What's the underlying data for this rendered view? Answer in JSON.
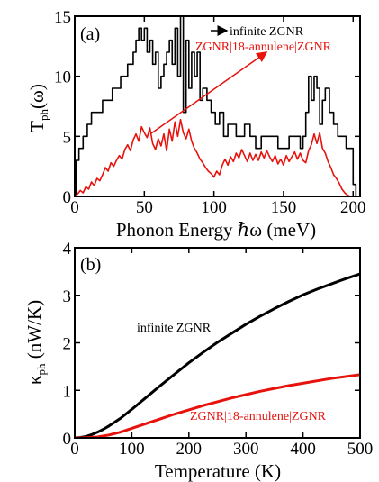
{
  "chart_data": [
    {
      "type": "line",
      "panel_label": "(a)",
      "xlabel": "Phonon Energy ℏω (meV)",
      "ylabel_main": "T",
      "ylabel_sub": "ph",
      "ylabel_tail": "(ω)",
      "xlim": [
        0,
        205
      ],
      "ylim": [
        0,
        15
      ],
      "xticks": [
        0,
        50,
        100,
        150,
        200
      ],
      "yticks": [
        0,
        5,
        10,
        15
      ],
      "grid": false,
      "series": [
        {
          "name": "infinite ZGNR",
          "color": "#000000",
          "step": true,
          "x": [
            0,
            1,
            3,
            6,
            9,
            12,
            16,
            20,
            24,
            27,
            30,
            33,
            36,
            38,
            40,
            42,
            44,
            46,
            48,
            50,
            52,
            54,
            56,
            58,
            60,
            62,
            64,
            66,
            68,
            70,
            72,
            74,
            76,
            78,
            80,
            82,
            84,
            86,
            88,
            90,
            92,
            95,
            98,
            101,
            104,
            107,
            110,
            113,
            116,
            119,
            122,
            126,
            130,
            134,
            138,
            142,
            146,
            150,
            154,
            158,
            162,
            164,
            166,
            168,
            170,
            172,
            174,
            176,
            178,
            180,
            183,
            186,
            189,
            192,
            195,
            198,
            200,
            202
          ],
          "values": [
            0,
            3,
            4,
            5,
            6,
            7,
            7,
            8,
            8,
            9,
            9,
            10,
            10,
            11,
            11,
            12,
            13,
            14,
            13,
            14,
            12,
            13,
            11,
            12,
            9,
            10,
            11,
            12,
            13,
            11,
            14,
            10,
            15,
            7,
            13,
            9,
            12,
            10,
            12,
            8,
            9,
            8,
            7,
            6,
            7,
            5,
            6,
            6,
            5,
            5,
            6,
            5,
            4,
            5,
            5,
            5,
            4,
            4,
            5,
            5,
            4,
            5,
            7,
            10,
            8,
            10,
            9,
            6,
            8,
            9,
            7,
            6,
            5,
            5,
            4,
            4,
            1,
            0
          ]
        },
        {
          "name": "ZGNR|18-annulene|ZGNR",
          "color": "#e8120c",
          "step": false,
          "x": [
            0,
            2,
            4,
            6,
            8,
            10,
            12,
            14,
            16,
            18,
            20,
            22,
            24,
            26,
            28,
            30,
            32,
            34,
            36,
            38,
            40,
            42,
            44,
            46,
            48,
            50,
            52,
            54,
            56,
            58,
            60,
            62,
            64,
            66,
            68,
            70,
            72,
            74,
            76,
            78,
            80,
            82,
            84,
            86,
            88,
            90,
            92,
            94,
            96,
            98,
            100,
            102,
            104,
            106,
            108,
            110,
            112,
            114,
            116,
            118,
            120,
            122,
            124,
            126,
            128,
            130,
            132,
            134,
            136,
            138,
            140,
            142,
            144,
            146,
            148,
            150,
            152,
            154,
            156,
            158,
            160,
            162,
            164,
            166,
            168,
            170,
            172,
            174,
            176,
            178,
            180,
            182,
            184,
            186,
            188,
            190,
            192,
            194,
            196,
            198,
            200
          ],
          "values": [
            0,
            0.2,
            0.5,
            0.3,
            0.8,
            0.6,
            1.2,
            0.9,
            1.5,
            1.3,
            1.8,
            2.4,
            2.1,
            2.8,
            2.5,
            3.0,
            3.4,
            3.1,
            3.9,
            4.3,
            3.8,
            4.7,
            5.2,
            4.6,
            5.8,
            5.3,
            4.9,
            5.7,
            4.4,
            3.9,
            4.8,
            4.2,
            5.2,
            3.8,
            5.6,
            4.6,
            6.2,
            5.0,
            6.4,
            5.3,
            4.8,
            5.6,
            4.6,
            4.0,
            3.6,
            3.1,
            2.8,
            2.4,
            2.1,
            1.9,
            1.6,
            2.1,
            1.8,
            2.6,
            3.1,
            2.6,
            3.3,
            2.9,
            3.6,
            3.2,
            3.9,
            3.4,
            2.9,
            3.6,
            3.0,
            3.5,
            3.0,
            3.7,
            3.2,
            3.8,
            3.3,
            2.9,
            3.4,
            2.7,
            3.1,
            2.6,
            3.4,
            2.9,
            3.3,
            3.7,
            3.1,
            3.6,
            3.0,
            2.8,
            3.8,
            4.3,
            5.2,
            4.4,
            5.3,
            4.0,
            3.6,
            2.9,
            2.4,
            1.8,
            1.5,
            1.1,
            0.6,
            0.3,
            0.1,
            0.0,
            0.0
          ]
        }
      ]
    },
    {
      "type": "line",
      "panel_label": "(b)",
      "xlabel": "Temperature (K)",
      "ylabel_main": "κ",
      "ylabel_sub": "ph",
      "ylabel_tail": " (nW/K)",
      "xlim": [
        0,
        500
      ],
      "ylim": [
        0,
        4
      ],
      "xticks": [
        0,
        100,
        200,
        300,
        400,
        500
      ],
      "yticks": [
        0,
        1,
        2,
        3,
        4
      ],
      "grid": false,
      "series": [
        {
          "name": "infinite ZGNR",
          "color": "#000000",
          "step": false,
          "x": [
            0,
            10,
            20,
            30,
            40,
            50,
            60,
            80,
            100,
            125,
            150,
            175,
            200,
            225,
            250,
            275,
            300,
            325,
            350,
            375,
            400,
            425,
            450,
            475,
            500
          ],
          "values": [
            0,
            0.01,
            0.03,
            0.07,
            0.12,
            0.18,
            0.25,
            0.41,
            0.6,
            0.85,
            1.1,
            1.34,
            1.58,
            1.8,
            2.01,
            2.2,
            2.39,
            2.56,
            2.72,
            2.87,
            3.01,
            3.13,
            3.24,
            3.35,
            3.45
          ]
        },
        {
          "name": "ZGNR|18-annulene|ZGNR",
          "color": "#e8120c",
          "step": false,
          "x": [
            0,
            20,
            40,
            60,
            80,
            100,
            125,
            150,
            175,
            200,
            225,
            250,
            275,
            300,
            325,
            350,
            375,
            400,
            425,
            450,
            475,
            500
          ],
          "values": [
            0,
            0.005,
            0.02,
            0.06,
            0.12,
            0.2,
            0.3,
            0.4,
            0.5,
            0.59,
            0.68,
            0.76,
            0.84,
            0.91,
            0.98,
            1.04,
            1.1,
            1.15,
            1.2,
            1.25,
            1.29,
            1.33
          ]
        }
      ]
    }
  ]
}
